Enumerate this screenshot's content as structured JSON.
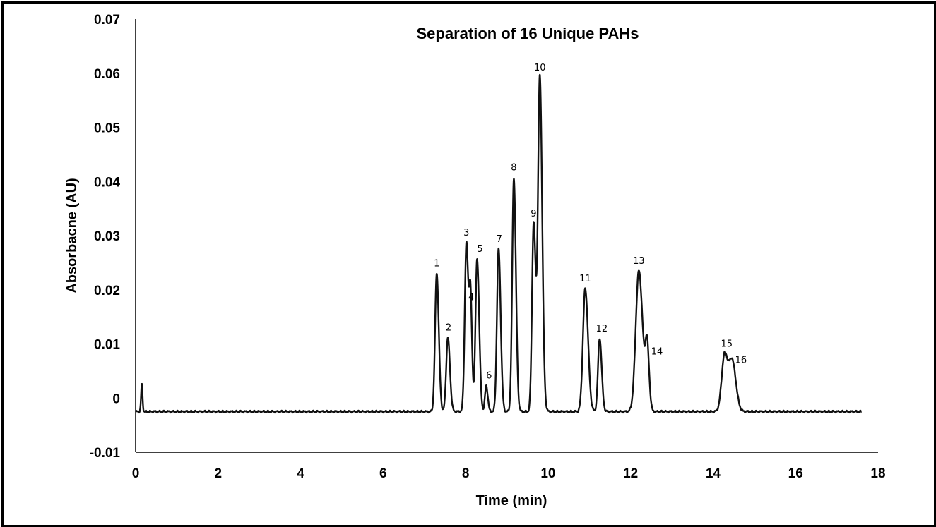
{
  "chart_data": {
    "type": "line",
    "title": "Separation of 16 Unique PAHs",
    "xlabel": "Time (min)",
    "ylabel": "Absorbacne (AU)",
    "xlim": [
      0,
      18
    ],
    "ylim": [
      -0.01,
      0.07
    ],
    "x_ticks": [
      "0",
      "2",
      "4",
      "6",
      "8",
      "10",
      "12",
      "14",
      "16",
      "18"
    ],
    "y_ticks": [
      "-0.01",
      "0",
      "0.01",
      "0.02",
      "0.03",
      "0.04",
      "0.05",
      "0.06",
      "0.07"
    ],
    "grid": false,
    "legend": "none",
    "baseline": -0.0025,
    "x_range": [
      0,
      17.6
    ],
    "line_color": "#111111",
    "injection_spike": {
      "x": 0.15,
      "y": 0.0025
    },
    "peaks": [
      {
        "label": "1",
        "x": 7.3,
        "y": 0.023
      },
      {
        "label": "2",
        "x": 7.57,
        "y": 0.0112
      },
      {
        "label": "3",
        "x": 8.02,
        "y": 0.0287
      },
      {
        "label": "4",
        "x": 8.12,
        "y": 0.0168
      },
      {
        "label": "5",
        "x": 8.28,
        "y": 0.0257
      },
      {
        "label": "6",
        "x": 8.5,
        "y": 0.0023
      },
      {
        "label": "7",
        "x": 8.8,
        "y": 0.0275
      },
      {
        "label": "8",
        "x": 9.17,
        "y": 0.0405
      },
      {
        "label": "9",
        "x": 9.65,
        "y": 0.0322
      },
      {
        "label": "10",
        "x": 9.8,
        "y": 0.0592
      },
      {
        "label": "11",
        "x": 10.9,
        "y": 0.0202
      },
      {
        "label": "12",
        "x": 11.25,
        "y": 0.011
      },
      {
        "label": "13",
        "x": 12.2,
        "y": 0.0235
      },
      {
        "label": "14",
        "x": 12.4,
        "y": 0.0088
      },
      {
        "label": "15",
        "x": 14.28,
        "y": 0.0082
      },
      {
        "label": "16",
        "x": 14.47,
        "y": 0.0062
      }
    ]
  }
}
